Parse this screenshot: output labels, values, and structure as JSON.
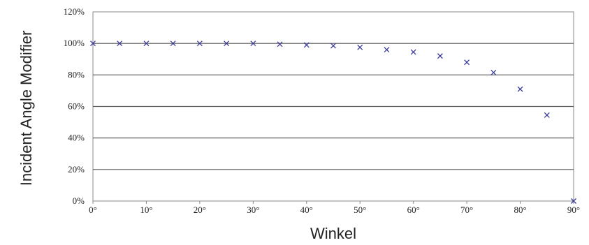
{
  "chart_data": {
    "type": "scatter",
    "xlabel": "Winkel",
    "ylabel": "Incident Angle Modifier",
    "xlim": [
      0,
      90
    ],
    "ylim": [
      0,
      1.2
    ],
    "x_ticks": [
      0,
      10,
      20,
      30,
      40,
      50,
      60,
      70,
      80,
      90
    ],
    "x_tick_labels": [
      "0°",
      "10°",
      "20°",
      "30°",
      "40°",
      "50°",
      "60°",
      "70°",
      "80°",
      "90°"
    ],
    "y_ticks": [
      0,
      0.2,
      0.4,
      0.6,
      0.8,
      1.0,
      1.2
    ],
    "y_tick_labels": [
      "0%",
      "20%",
      "40%",
      "60%",
      "80%",
      "100%",
      "120%"
    ],
    "grid": "horizontal",
    "marker": "x",
    "marker_color": "#3b3b9a",
    "series": [
      {
        "x": [
          0,
          5,
          10,
          15,
          20,
          25,
          30,
          35,
          40,
          45,
          50,
          55,
          60,
          65,
          70,
          75,
          80,
          85,
          90
        ],
        "values": [
          1.0,
          1.0,
          1.0,
          1.0,
          1.0,
          1.0,
          1.0,
          0.995,
          0.99,
          0.985,
          0.975,
          0.96,
          0.945,
          0.92,
          0.88,
          0.815,
          0.71,
          0.545,
          0.0
        ]
      }
    ]
  }
}
